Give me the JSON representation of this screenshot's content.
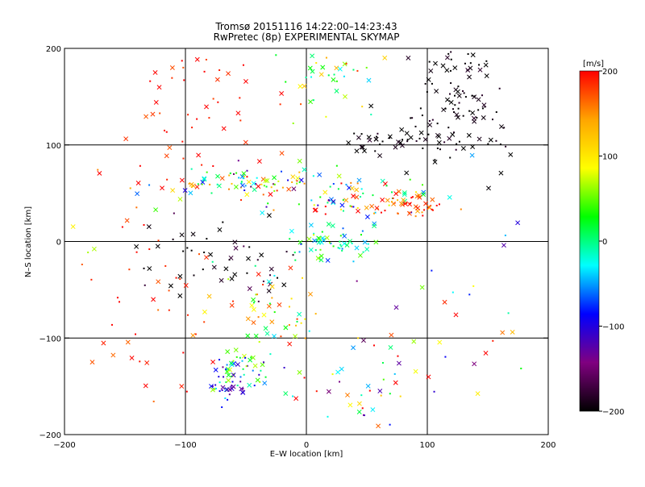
{
  "chart_data": {
    "type": "scatter",
    "title": "Tromsø 20151116 14:22:00–14:23:43",
    "subtitle": "RwPretec (8p) EXPERIMENTAL SKYMAP",
    "xlabel": "E–W location [km]",
    "ylabel": "N–S location [km]",
    "xlim": [
      -200,
      200
    ],
    "ylim": [
      -200,
      200
    ],
    "xticks": [
      "−200",
      "−100",
      "0",
      "100",
      "200"
    ],
    "yticks": [
      "200",
      "100",
      "0",
      "−100",
      "−200"
    ],
    "grid": true,
    "colorbar": {
      "title": "[m/s]",
      "range": [
        -200,
        200
      ],
      "ticks": [
        "200",
        "100",
        "0",
        "−100",
        "−200"
      ],
      "colors": [
        "#ff0000",
        "#ffa500",
        "#ffff00",
        "#00ff00",
        "#00ffff",
        "#0000ff",
        "#800080",
        "#000000"
      ]
    },
    "marker_types": [
      "x",
      "dot"
    ],
    "clusters": [
      {
        "x": 125,
        "y": 145,
        "sx": 22,
        "sy": 35,
        "n": 120,
        "vmean": -200,
        "vspread": 20
      },
      {
        "x": 70,
        "y": 105,
        "sx": 22,
        "sy": 8,
        "n": 35,
        "vmean": -200,
        "vspread": 20
      },
      {
        "x": 15,
        "y": 170,
        "sx": 25,
        "sy": 20,
        "n": 40,
        "vmean": 80,
        "vspread": 120
      },
      {
        "x": -90,
        "y": 140,
        "sx": 35,
        "sy": 35,
        "n": 45,
        "vmean": 190,
        "vspread": 20
      },
      {
        "x": -40,
        "y": 60,
        "sx": 40,
        "sy": 8,
        "n": 90,
        "vmean": 30,
        "vspread": 200
      },
      {
        "x": 40,
        "y": 45,
        "sx": 30,
        "sy": 10,
        "n": 80,
        "vmean": 60,
        "vspread": 180
      },
      {
        "x": 85,
        "y": 35,
        "sx": 15,
        "sy": 6,
        "n": 40,
        "vmean": 180,
        "vspread": 40
      },
      {
        "x": 20,
        "y": 0,
        "sx": 18,
        "sy": 8,
        "n": 60,
        "vmean": 0,
        "vspread": 80
      },
      {
        "x": -70,
        "y": -20,
        "sx": 40,
        "sy": 25,
        "n": 50,
        "vmean": -190,
        "vspread": 30
      },
      {
        "x": -30,
        "y": -70,
        "sx": 25,
        "sy": 25,
        "n": 55,
        "vmean": 80,
        "vspread": 120
      },
      {
        "x": -55,
        "y": -130,
        "sx": 12,
        "sy": 15,
        "n": 50,
        "vmean": -20,
        "vspread": 100
      },
      {
        "x": -65,
        "y": -150,
        "sx": 8,
        "sy": 8,
        "n": 25,
        "vmean": -110,
        "vspread": 30
      },
      {
        "x": 45,
        "y": -150,
        "sx": 35,
        "sy": 30,
        "n": 50,
        "vmean": 60,
        "vspread": 220
      },
      {
        "x": -130,
        "y": -60,
        "sx": 25,
        "sy": 60,
        "n": 40,
        "vmean": 190,
        "vspread": 30
      },
      {
        "x": 140,
        "y": -60,
        "sx": 40,
        "sy": 60,
        "n": 25,
        "vmean": 50,
        "vspread": 200
      },
      {
        "x": -150,
        "y": 60,
        "sx": 30,
        "sy": 60,
        "n": 15,
        "vmean": 120,
        "vspread": 150
      }
    ]
  }
}
